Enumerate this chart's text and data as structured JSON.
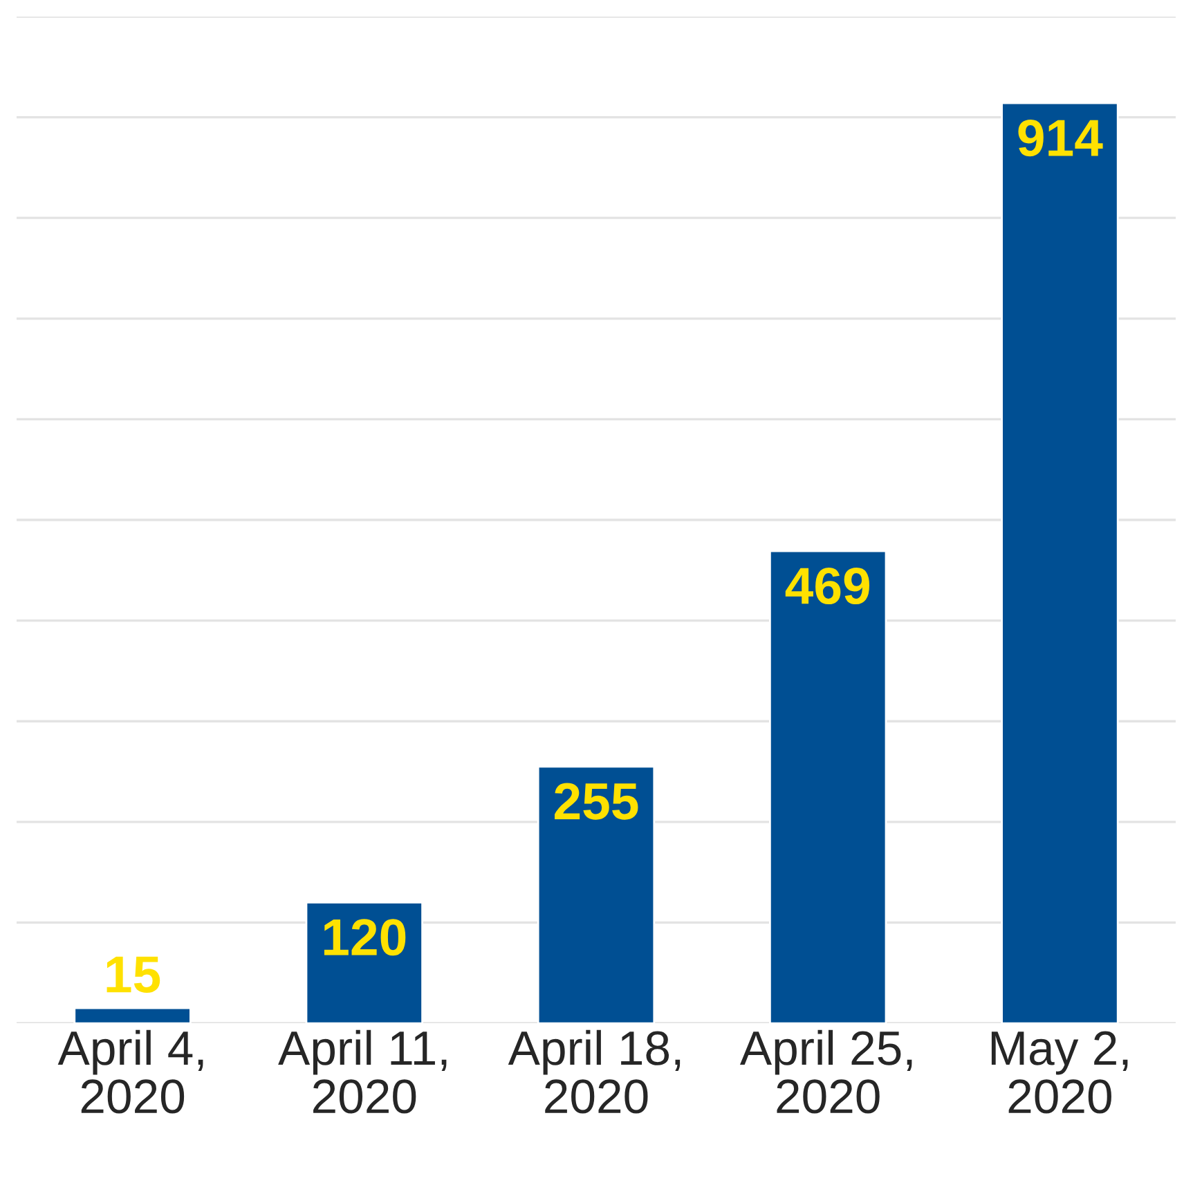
{
  "chart_data": {
    "type": "bar",
    "categories": [
      "April 4, 2020",
      "April 11, 2020",
      "April 18, 2020",
      "April 25, 2020",
      "May 2, 2020"
    ],
    "values": [
      15,
      120,
      255,
      469,
      914
    ],
    "color": "#004f93",
    "data_labels": true,
    "ylim": [
      0,
      1000
    ],
    "yticks": [
      {
        "value": 0,
        "label": null
      },
      {
        "value": 100,
        "label": null
      },
      {
        "value": 200,
        "label": null
      },
      {
        "value": 300,
        "label": null
      },
      {
        "value": 400,
        "label": null
      },
      {
        "value": 500,
        "label": null
      },
      {
        "value": 600,
        "label": null
      },
      {
        "value": 700,
        "label": null
      },
      {
        "value": 800,
        "label": null
      },
      {
        "value": 900,
        "label": null
      },
      {
        "value": 1000,
        "label": null
      }
    ],
    "tick_labels": "x",
    "grid": "y"
  }
}
